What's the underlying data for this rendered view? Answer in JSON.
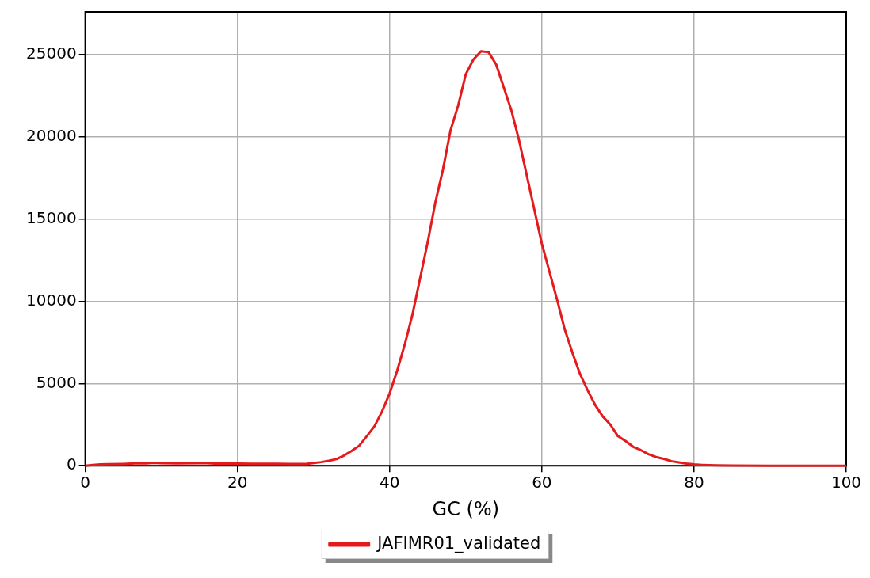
{
  "chart_data": {
    "type": "line",
    "xlabel": "GC (%)",
    "legend": "bottom",
    "grid": true,
    "marker": "none",
    "line_style": "solid",
    "xlim": [
      0,
      100
    ],
    "xticks": [
      0,
      20,
      40,
      60,
      80,
      100
    ],
    "ylim": [
      0,
      27600
    ],
    "yticks": [
      0,
      5000,
      10000,
      15000,
      20000,
      25000
    ],
    "series": [
      {
        "name": "JAFIMR01_validated",
        "color": "#e41a1c",
        "x": [
          0,
          1,
          2,
          3,
          5,
          7,
          8,
          9,
          10,
          12,
          15,
          16,
          17,
          20,
          22,
          25,
          27,
          29,
          30,
          31,
          32,
          33,
          34,
          35,
          36,
          37,
          38,
          39,
          40,
          41,
          42,
          43,
          44,
          45,
          46,
          47,
          48,
          49,
          50,
          51,
          52,
          53,
          54,
          55,
          56,
          57,
          58,
          59,
          60,
          61,
          62,
          63,
          64,
          65,
          66,
          67,
          68,
          69,
          70,
          71,
          72,
          73,
          74,
          75,
          76,
          77,
          78,
          79,
          80,
          81,
          82,
          83,
          85,
          90,
          95,
          100
        ],
        "values": [
          0,
          50,
          80,
          90,
          110,
          150,
          140,
          180,
          150,
          140,
          160,
          150,
          130,
          130,
          120,
          120,
          110,
          110,
          170,
          220,
          300,
          400,
          620,
          900,
          1220,
          1800,
          2400,
          3300,
          4400,
          5800,
          7400,
          9200,
          11400,
          13600,
          16000,
          18000,
          20400,
          21900,
          23800,
          24700,
          25200,
          25150,
          24400,
          23000,
          21600,
          19800,
          17700,
          15600,
          13500,
          11800,
          10100,
          8300,
          6900,
          5600,
          4600,
          3700,
          3000,
          2500,
          1800,
          1500,
          1150,
          950,
          700,
          530,
          420,
          280,
          200,
          130,
          80,
          50,
          30,
          20,
          10,
          0,
          0,
          0
        ]
      }
    ]
  }
}
